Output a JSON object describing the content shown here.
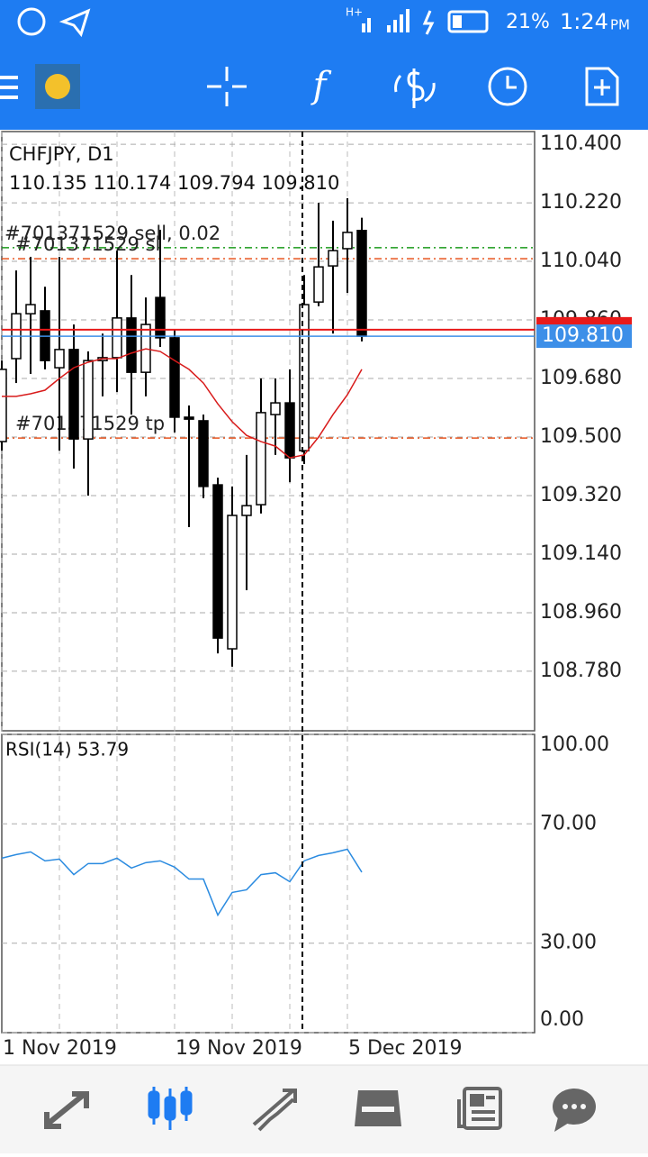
{
  "status_bar": {
    "battery": "21%",
    "time": "1:24",
    "ampm": "PM",
    "network": "H+"
  },
  "toolbar": {
    "function_icon": "f"
  },
  "chart_data": [
    {
      "type": "candlestick",
      "title": "CHFJPY, D1",
      "subtitle": "110.135 110.174 109.794 109.810",
      "categories": [
        "1 Nov 2019",
        null,
        null,
        null,
        null,
        null,
        null,
        null,
        null,
        null,
        null,
        null,
        "19 Nov 2019",
        null,
        null,
        null,
        null,
        null,
        null,
        null,
        null,
        null,
        null,
        null,
        "5 Dec 2019",
        null
      ],
      "open": [
        109.486,
        109.741,
        109.879,
        109.888,
        109.713,
        109.769,
        109.494,
        109.735,
        109.744,
        109.866,
        109.699,
        109.929,
        109.805,
        109.561,
        109.55,
        109.353,
        108.849,
        109.259,
        109.292,
        109.569,
        109.605,
        109.458,
        109.915,
        110.026,
        110.079,
        110.135
      ],
      "high": [
        109.735,
        110.012,
        110.054,
        109.962,
        110.054,
        109.846,
        109.763,
        109.818,
        110.073,
        109.998,
        109.929,
        110.137,
        109.832,
        109.597,
        109.569,
        109.375,
        109.348,
        109.445,
        109.68,
        109.68,
        109.708,
        109.998,
        110.22,
        110.165,
        110.234,
        110.174
      ],
      "low": [
        109.458,
        109.666,
        109.694,
        109.708,
        109.458,
        109.403,
        109.32,
        109.625,
        109.638,
        109.569,
        109.625,
        109.777,
        109.514,
        109.223,
        109.312,
        108.835,
        108.794,
        109.029,
        109.265,
        109.445,
        109.361,
        109.417,
        109.902,
        109.818,
        109.943,
        109.794
      ],
      "close": [
        109.708,
        109.879,
        109.907,
        109.735,
        109.769,
        109.494,
        109.735,
        109.744,
        109.866,
        109.699,
        109.846,
        109.805,
        109.561,
        109.555,
        109.348,
        108.882,
        109.259,
        109.289,
        109.575,
        109.605,
        109.436,
        109.907,
        110.023,
        110.073,
        110.129,
        109.81
      ],
      "ma": {
        "color": "#d81b1b",
        "values": [
          109.625,
          109.625,
          109.633,
          109.644,
          109.68,
          109.713,
          109.73,
          109.741,
          109.741,
          109.758,
          109.771,
          109.763,
          109.735,
          109.708,
          109.666,
          109.602,
          109.547,
          109.505,
          109.486,
          109.472,
          109.436,
          109.445,
          109.5,
          109.569,
          109.63,
          109.708
        ]
      },
      "orders": [
        {
          "label": "#701371529 sell, 0.02",
          "value": 110.082,
          "color": "#1a9a1a"
        },
        {
          "label": "#701371529 sl",
          "value": 110.048,
          "color": "#e8541e"
        },
        {
          "label": "#701371529 tp",
          "value": 109.497,
          "color": "#e8541e"
        }
      ],
      "bid": {
        "value": 109.81,
        "label": "109.810",
        "color": "#3d8fe8"
      },
      "ask": {
        "value": 109.83,
        "color": "#e81a1a"
      },
      "ylim": [
        108.597,
        110.439
      ],
      "yticks": [
        {
          "value": 110.4,
          "label": "110.400"
        },
        {
          "value": 110.22,
          "label": "110.220"
        },
        {
          "value": 110.04,
          "label": "110.040"
        },
        {
          "value": 109.86,
          "label": "109.860"
        },
        {
          "value": 109.68,
          "label": "109.680"
        },
        {
          "value": 109.5,
          "label": "109.500"
        },
        {
          "value": 109.32,
          "label": "109.320"
        },
        {
          "value": 109.14,
          "label": "109.140"
        },
        {
          "value": 108.96,
          "label": "108.960"
        },
        {
          "value": 108.78,
          "label": "108.780"
        }
      ],
      "grid": true
    },
    {
      "type": "line",
      "title": "RSI(14) 53.79",
      "color": "#2b8be0",
      "values": [
        58.5,
        59.7,
        60.6,
        57.6,
        58.2,
        53.0,
        56.7,
        56.7,
        58.5,
        55.2,
        57.0,
        57.6,
        55.5,
        51.5,
        51.5,
        39.4,
        47.0,
        47.9,
        53.0,
        53.6,
        50.6,
        57.6,
        59.4,
        60.3,
        61.5,
        53.79
      ],
      "ylim": [
        0,
        100
      ],
      "yticks": [
        {
          "value": 100,
          "label": "100.00"
        },
        {
          "value": 70,
          "label": "70.00"
        },
        {
          "value": 30,
          "label": "30.00"
        },
        {
          "value": 0,
          "label": "0.00"
        }
      ]
    }
  ]
}
